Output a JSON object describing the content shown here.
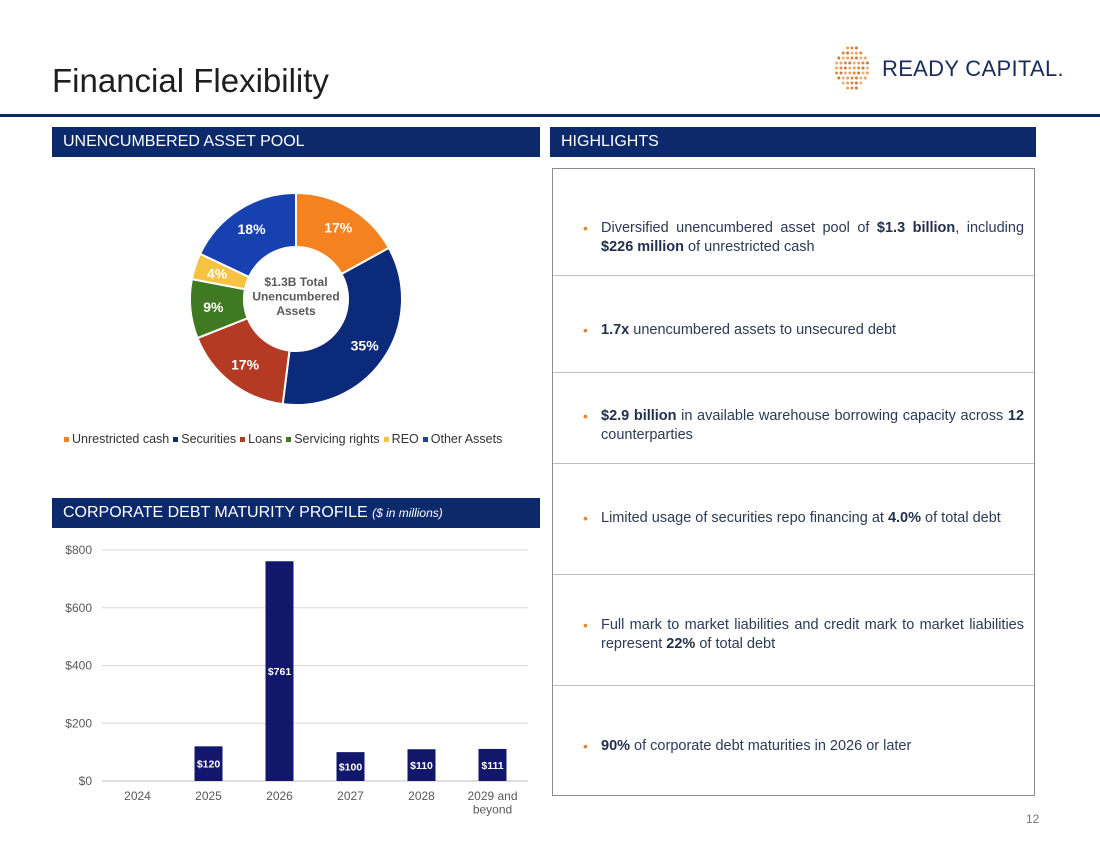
{
  "page": {
    "title": "Financial Flexibility",
    "logo_text": "READY CAPITAL.",
    "page_number": "12"
  },
  "sections": {
    "asset_pool_header": "UNENCUMBERED ASSET POOL",
    "highlights_header": "HIGHLIGHTS",
    "debt_header": "CORPORATE DEBT MATURITY PROFILE",
    "debt_header_note": "($ in millions)"
  },
  "colors": {
    "navy": "#0c2a6b",
    "unrestricted_cash": "#f58220",
    "securities": "#0c2a7a",
    "loans": "#b53a24",
    "servicing_rights": "#3f7a23",
    "reo": "#f5c242",
    "other_assets": "#1740b0",
    "bar": "#12176b",
    "bullet": "#e8832a"
  },
  "chart_data": [
    {
      "type": "pie",
      "variant": "donut",
      "center_label": [
        "$1.3B Total",
        "Unencumbered",
        "Assets"
      ],
      "categories": [
        "Unrestricted cash",
        "Securities",
        "Loans",
        "Servicing rights",
        "REO",
        "Other Assets"
      ],
      "values": [
        17,
        35,
        17,
        9,
        4,
        18
      ],
      "labels": [
        "17%",
        "35%",
        "17%",
        "9%",
        "4%",
        "18%"
      ],
      "legend_position": "bottom"
    },
    {
      "type": "bar",
      "title": "CORPORATE DEBT MATURITY PROFILE ($ in millions)",
      "categories": [
        "2024",
        "2025",
        "2026",
        "2027",
        "2028",
        "2029 and beyond"
      ],
      "category_lines": [
        [
          "2024"
        ],
        [
          "2025"
        ],
        [
          "2026"
        ],
        [
          "2027"
        ],
        [
          "2028"
        ],
        [
          "2029 and",
          "beyond"
        ]
      ],
      "values": [
        0,
        120,
        761,
        100,
        110,
        111
      ],
      "data_labels": [
        "",
        "$120",
        "$761",
        "$100",
        "$110",
        "$111"
      ],
      "yticks": [
        0,
        200,
        400,
        600,
        800
      ],
      "ytick_labels": [
        "$0",
        "$200",
        "$400",
        "$600",
        "$800"
      ],
      "ylim": [
        0,
        800
      ],
      "grid": true
    }
  ],
  "highlights": [
    {
      "parts": [
        {
          "t": "Diversified unencumbered asset pool of "
        },
        {
          "t": "$1.3 billion",
          "b": true
        },
        {
          "t": ", including "
        },
        {
          "t": "$226 million",
          "b": true
        },
        {
          "t": " of unrestricted cash"
        }
      ]
    },
    {
      "parts": [
        {
          "t": "1.7x",
          "b": true
        },
        {
          "t": " unencumbered assets to unsecured debt"
        }
      ]
    },
    {
      "parts": [
        {
          "t": "$2.9 billion",
          "b": true
        },
        {
          "t": " in available warehouse borrowing capacity across "
        },
        {
          "t": "12",
          "b": true
        },
        {
          "t": " counterparties"
        }
      ]
    },
    {
      "parts": [
        {
          "t": "Limited usage of securities repo financing at "
        },
        {
          "t": "4.0%",
          "b": true
        },
        {
          "t": " of total debt"
        }
      ]
    },
    {
      "parts": [
        {
          "t": "Full mark to market liabilities and credit mark to market liabilities represent "
        },
        {
          "t": "22%",
          "b": true
        },
        {
          "t": " of total debt"
        }
      ]
    },
    {
      "parts": [
        {
          "t": "90%",
          "b": true
        },
        {
          "t": " of corporate debt maturities in 2026 or later"
        }
      ]
    }
  ],
  "bullet_char": "•"
}
